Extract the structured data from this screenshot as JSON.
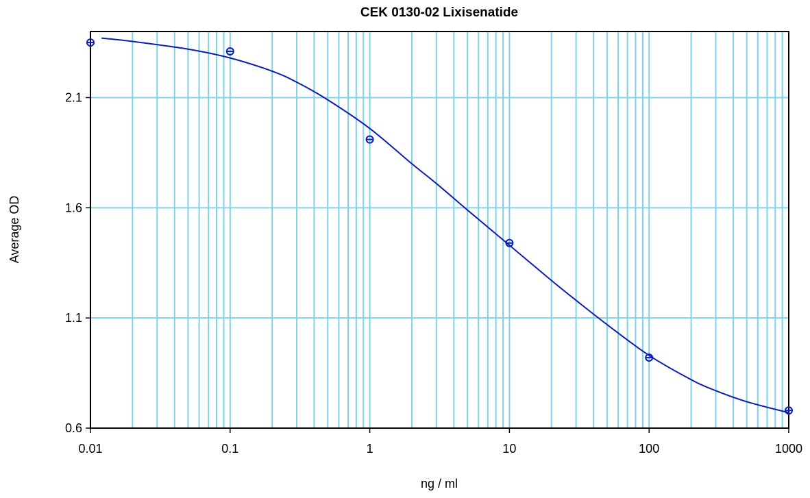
{
  "chart_data": {
    "type": "scatter",
    "title": "CEK 0130-02 Lixisenatide",
    "xlabel": "ng / ml",
    "ylabel": "Average OD",
    "x_scale": "log",
    "xlim": [
      0.01,
      1000
    ],
    "ylim": [
      0.6,
      2.4
    ],
    "x_ticks": [
      0.01,
      0.1,
      1,
      10,
      100,
      1000
    ],
    "x_tick_labels": [
      "0.01",
      "0.1",
      "1",
      "10",
      "100",
      "1000"
    ],
    "y_ticks": [
      0.6,
      1.1,
      1.6,
      2.1
    ],
    "y_tick_labels": [
      "0.6",
      "1.1",
      "1.6",
      "2.1"
    ],
    "grid": true,
    "colors": {
      "grid": "#7fd3e8",
      "series": "#0a1eb4",
      "frame": "#000000"
    },
    "series": [
      {
        "type": "scatter",
        "x": [
          0.01,
          0.1,
          1,
          10,
          100,
          1000
        ],
        "y": [
          2.35,
          2.31,
          1.91,
          1.44,
          0.92,
          0.68
        ]
      },
      {
        "type": "line",
        "x": [
          0.012,
          0.02,
          0.05,
          0.1,
          0.2,
          0.3,
          0.5,
          1,
          2,
          3,
          5,
          10,
          20,
          30,
          50,
          100,
          200,
          300,
          500,
          1000
        ],
        "y": [
          2.37,
          2.355,
          2.32,
          2.28,
          2.22,
          2.17,
          2.09,
          1.96,
          1.8,
          1.71,
          1.59,
          1.43,
          1.27,
          1.18,
          1.07,
          0.93,
          0.82,
          0.77,
          0.72,
          0.67
        ]
      }
    ]
  }
}
